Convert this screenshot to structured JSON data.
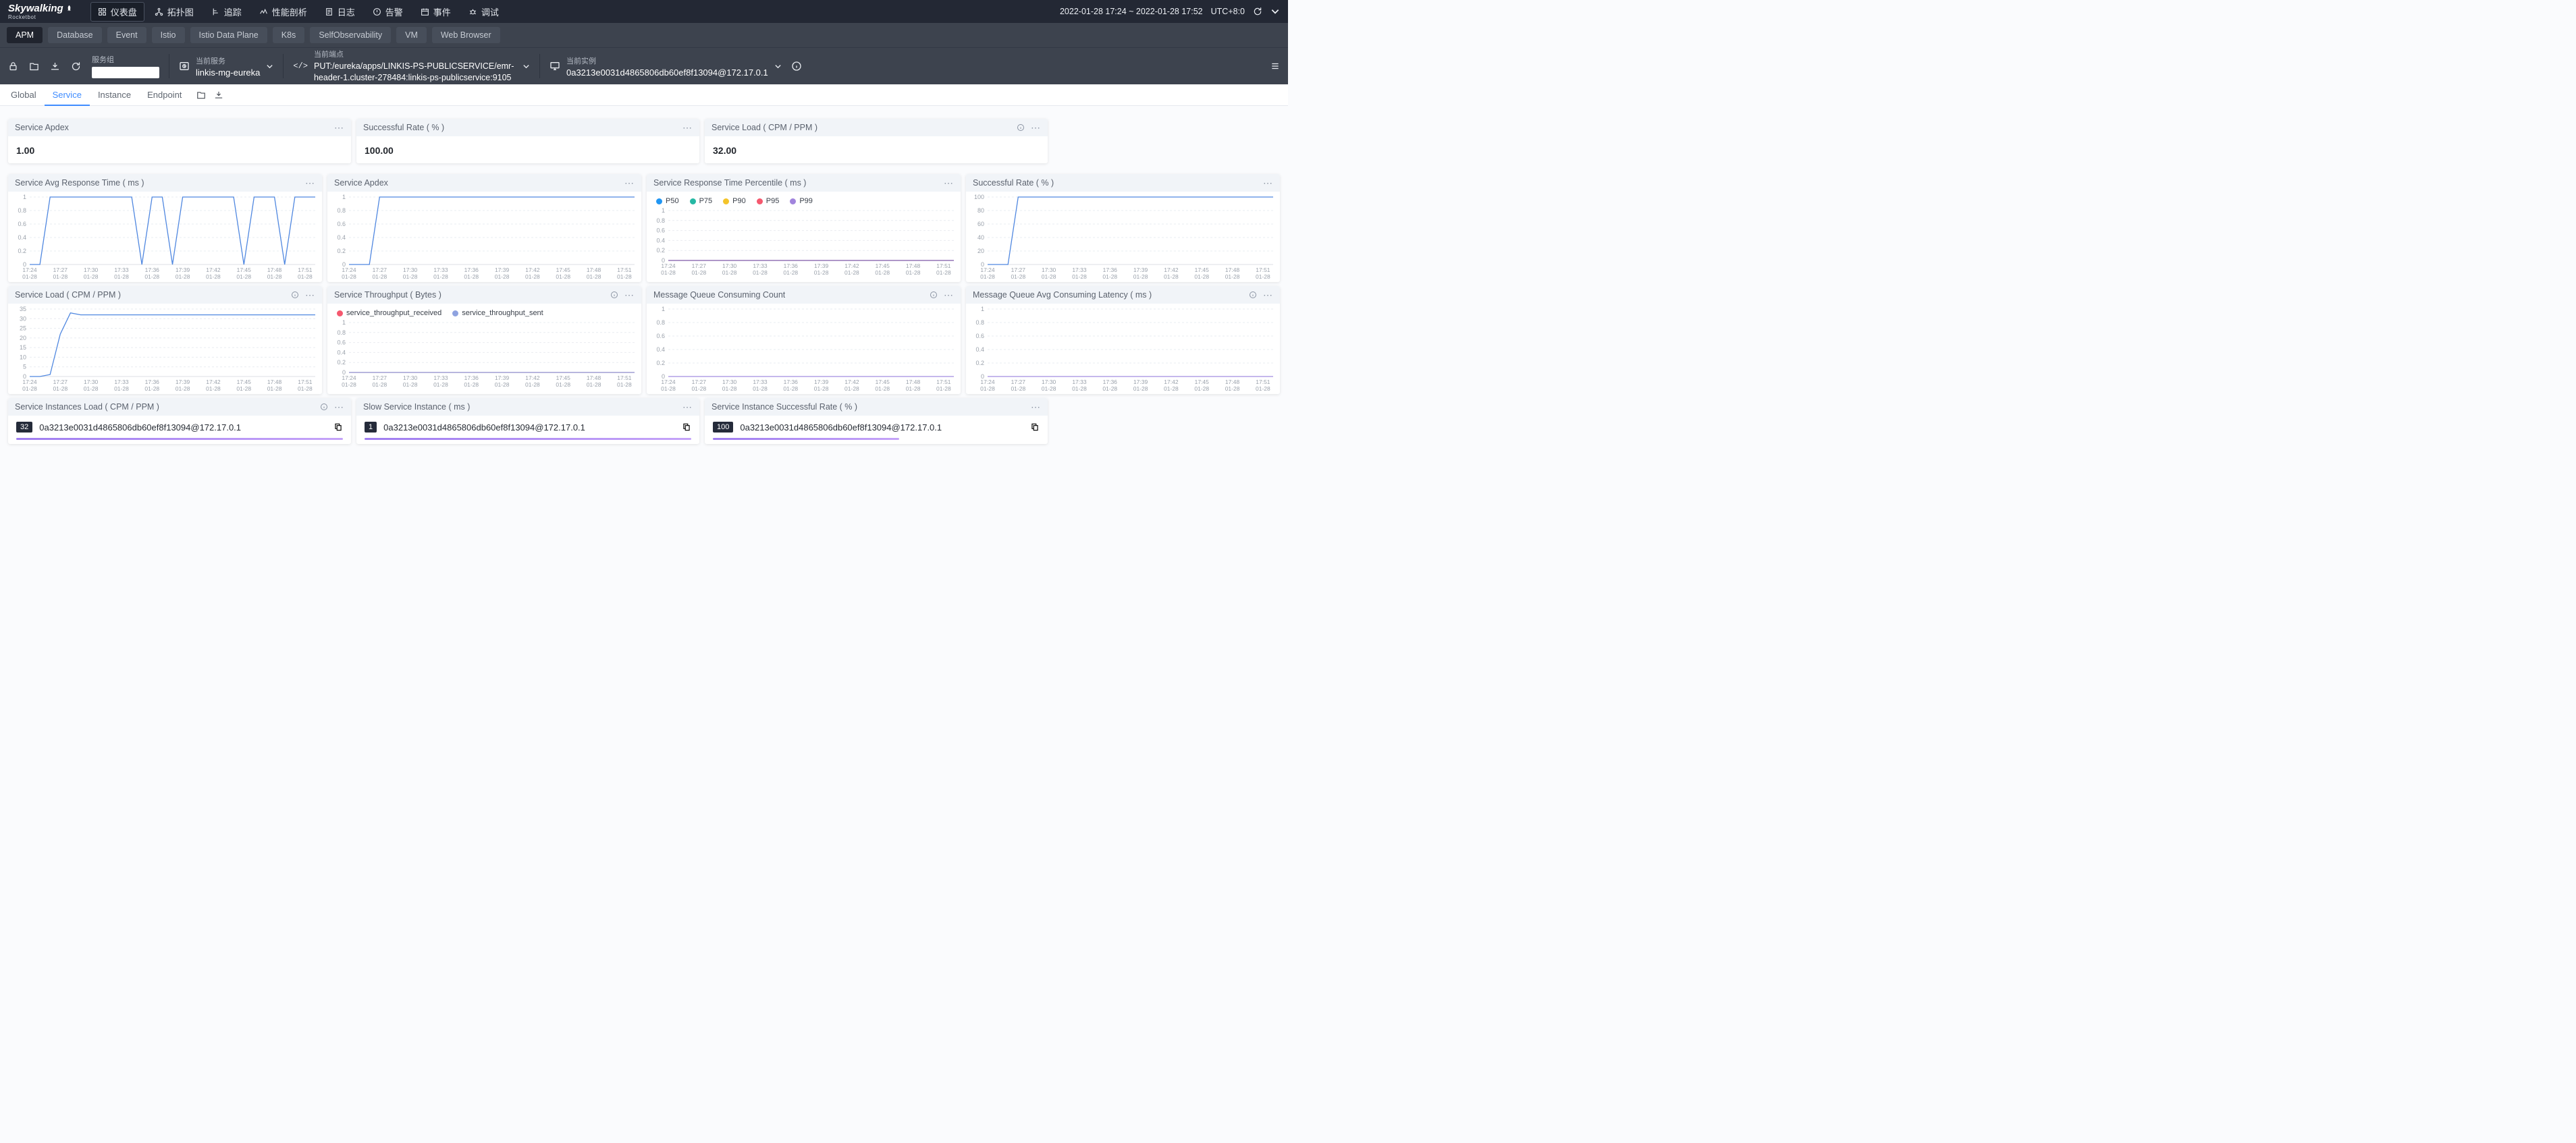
{
  "icons": {
    "more": "⋯",
    "code": "</>"
  },
  "topbar": {
    "logo_title": "Skywalking",
    "logo_subtitle": "Rocketbot",
    "nav": [
      {
        "label": "仪表盘"
      },
      {
        "label": "拓扑图"
      },
      {
        "label": "追踪"
      },
      {
        "label": "性能剖析"
      },
      {
        "label": "日志"
      },
      {
        "label": "告警"
      },
      {
        "label": "事件"
      },
      {
        "label": "调试"
      }
    ],
    "time_range": "2022-01-28 17:24 ~ 2022-01-28 17:52",
    "timezone": "UTC+8:0"
  },
  "dashboard_tabs": {
    "items": [
      {
        "label": "APM",
        "active": true
      },
      {
        "label": "Database"
      },
      {
        "label": "Event"
      },
      {
        "label": "Istio"
      },
      {
        "label": "Istio Data Plane"
      },
      {
        "label": "K8s"
      },
      {
        "label": "SelfObservability"
      },
      {
        "label": "VM"
      },
      {
        "label": "Web Browser"
      }
    ]
  },
  "toolbar": {
    "service_group": {
      "label": "服务组",
      "value": ""
    },
    "current_service": {
      "label": "当前服务",
      "value": "linkis-mg-eureka"
    },
    "current_endpoint": {
      "label": "当前端点",
      "value": "PUT:/eureka/apps/LINKIS-PS-PUBLICSERVICE/emr-header-1.cluster-278484:linkis-ps-publicservice:9105"
    },
    "current_instance": {
      "label": "当前实例",
      "value": "0a3213e0031d4865806db60ef8f13094@172.17.0.1"
    }
  },
  "view_tabs": {
    "items": [
      {
        "label": "Global"
      },
      {
        "label": "Service",
        "active": true
      },
      {
        "label": "Instance"
      },
      {
        "label": "Endpoint"
      }
    ]
  },
  "stat_cards": [
    {
      "title": "Service Apdex",
      "value": "1.00"
    },
    {
      "title": "Successful Rate ( % )",
      "value": "100.00"
    },
    {
      "title": "Service Load ( CPM / PPM )",
      "value": "32.00",
      "has_info": true
    }
  ],
  "chart_data": [
    {
      "type": "line",
      "title": "Service Avg Response Time ( ms )",
      "yticks": [
        0,
        0.2,
        0.4,
        0.6,
        0.8,
        1
      ],
      "x_start": "17:24",
      "x_end": "17:52",
      "x_date": "01-28",
      "x_labels": [
        "17:24",
        "17:27",
        "17:30",
        "17:33",
        "17:36",
        "17:39",
        "17:42",
        "17:45",
        "17:48",
        "17:51"
      ],
      "series": [
        {
          "name": "avg_response_time",
          "color": "#4f87e0",
          "values": [
            0,
            0,
            1,
            1,
            1,
            1,
            1,
            1,
            1,
            1,
            1,
            0,
            1,
            1,
            0,
            1,
            1,
            1,
            1,
            1,
            1,
            0,
            1,
            1,
            1,
            0,
            1,
            1,
            1
          ]
        }
      ]
    },
    {
      "type": "line",
      "title": "Service Apdex",
      "yticks": [
        0,
        0.2,
        0.4,
        0.6,
        0.8,
        1
      ],
      "x_start": "17:24",
      "x_end": "17:52",
      "x_date": "01-28",
      "x_labels": [
        "17:24",
        "17:27",
        "17:30",
        "17:33",
        "17:36",
        "17:39",
        "17:42",
        "17:45",
        "17:48",
        "17:51"
      ],
      "series": [
        {
          "name": "apdex",
          "color": "#4f87e0",
          "values": [
            0,
            0,
            0,
            1,
            1,
            1,
            1,
            1,
            1,
            1,
            1,
            1,
            1,
            1,
            1,
            1,
            1,
            1,
            1,
            1,
            1,
            1,
            1,
            1,
            1,
            1,
            1,
            1,
            1
          ]
        }
      ]
    },
    {
      "type": "line",
      "title": "Service Response Time Percentile ( ms )",
      "legend": true,
      "yticks": [
        0,
        0.2,
        0.4,
        0.6,
        0.8,
        1
      ],
      "x_start": "17:24",
      "x_end": "17:52",
      "x_date": "01-28",
      "x_labels": [
        "17:24",
        "17:27",
        "17:30",
        "17:33",
        "17:36",
        "17:39",
        "17:42",
        "17:45",
        "17:48",
        "17:51"
      ],
      "series": [
        {
          "name": "P50",
          "color": "#2196f3",
          "values": [
            0,
            0,
            0,
            0,
            0,
            0,
            0,
            0,
            0,
            0,
            0,
            0,
            0,
            0,
            0,
            0,
            0,
            0,
            0,
            0,
            0,
            0,
            0,
            0,
            0,
            0,
            0,
            0,
            0
          ]
        },
        {
          "name": "P75",
          "color": "#25b8a4",
          "values": [
            0,
            0,
            0,
            0,
            0,
            0,
            0,
            0,
            0,
            0,
            0,
            0,
            0,
            0,
            0,
            0,
            0,
            0,
            0,
            0,
            0,
            0,
            0,
            0,
            0,
            0,
            0,
            0,
            0
          ]
        },
        {
          "name": "P90",
          "color": "#f4c42a",
          "values": [
            0,
            0,
            0,
            0,
            0,
            0,
            0,
            0,
            0,
            0,
            0,
            0,
            0,
            0,
            0,
            0,
            0,
            0,
            0,
            0,
            0,
            0,
            0,
            0,
            0,
            0,
            0,
            0,
            0
          ]
        },
        {
          "name": "P95",
          "color": "#f5586e",
          "values": [
            0,
            0,
            0,
            0,
            0,
            0,
            0,
            0,
            0,
            0,
            0,
            0,
            0,
            0,
            0,
            0,
            0,
            0,
            0,
            0,
            0,
            0,
            0,
            0,
            0,
            0,
            0,
            0,
            0
          ]
        },
        {
          "name": "P99",
          "color": "#a184dd",
          "values": [
            0,
            0,
            0,
            0,
            0,
            0,
            0,
            0,
            0,
            0,
            0,
            0,
            0,
            0,
            0,
            0,
            0,
            0,
            0,
            0,
            0,
            0,
            0,
            0,
            0,
            0,
            0,
            0,
            0
          ]
        }
      ]
    },
    {
      "type": "line",
      "title": "Successful Rate ( % )",
      "yticks": [
        0,
        20,
        40,
        60,
        80,
        100
      ],
      "x_start": "17:24",
      "x_end": "17:52",
      "x_date": "01-28",
      "x_labels": [
        "17:24",
        "17:27",
        "17:30",
        "17:33",
        "17:36",
        "17:39",
        "17:42",
        "17:45",
        "17:48",
        "17:51"
      ],
      "series": [
        {
          "name": "successful_rate",
          "color": "#4f87e0",
          "values": [
            0,
            0,
            0,
            100,
            100,
            100,
            100,
            100,
            100,
            100,
            100,
            100,
            100,
            100,
            100,
            100,
            100,
            100,
            100,
            100,
            100,
            100,
            100,
            100,
            100,
            100,
            100,
            100,
            100
          ]
        }
      ]
    },
    {
      "type": "line",
      "title": "Service Load ( CPM / PPM )",
      "has_info": true,
      "yticks": [
        0,
        5,
        10,
        15,
        20,
        25,
        30,
        35
      ],
      "x_start": "17:24",
      "x_end": "17:52",
      "x_date": "01-28",
      "x_labels": [
        "17:24",
        "17:27",
        "17:30",
        "17:33",
        "17:36",
        "17:39",
        "17:42",
        "17:45",
        "17:48",
        "17:51"
      ],
      "series": [
        {
          "name": "service_load",
          "color": "#4f87e0",
          "values": [
            0,
            0,
            1,
            22,
            33,
            32,
            32,
            32,
            32,
            32,
            32,
            32,
            32,
            32,
            32,
            32,
            32,
            32,
            32,
            32,
            32,
            32,
            32,
            32,
            32,
            32,
            32,
            32,
            32
          ]
        }
      ]
    },
    {
      "type": "line",
      "title": "Service Throughput ( Bytes )",
      "has_info": true,
      "legend": true,
      "yticks": [
        0,
        0.2,
        0.4,
        0.6,
        0.8,
        1
      ],
      "x_start": "17:24",
      "x_end": "17:52",
      "x_date": "01-28",
      "x_labels": [
        "17:24",
        "17:27",
        "17:30",
        "17:33",
        "17:36",
        "17:39",
        "17:42",
        "17:45",
        "17:48",
        "17:51"
      ],
      "series": [
        {
          "name": "service_throughput_received",
          "color": "#f5586e",
          "values": [
            0,
            0,
            0,
            0,
            0,
            0,
            0,
            0,
            0,
            0,
            0,
            0,
            0,
            0,
            0,
            0,
            0,
            0,
            0,
            0,
            0,
            0,
            0,
            0,
            0,
            0,
            0,
            0,
            0
          ]
        },
        {
          "name": "service_throughput_sent",
          "color": "#8fa3e0",
          "values": [
            0,
            0,
            0,
            0,
            0,
            0,
            0,
            0,
            0,
            0,
            0,
            0,
            0,
            0,
            0,
            0,
            0,
            0,
            0,
            0,
            0,
            0,
            0,
            0,
            0,
            0,
            0,
            0,
            0
          ]
        }
      ]
    },
    {
      "type": "line",
      "title": "Message Queue Consuming Count",
      "has_info": true,
      "yticks": [
        0,
        0.2,
        0.4,
        0.6,
        0.8,
        1
      ],
      "x_start": "17:24",
      "x_end": "17:52",
      "x_date": "01-28",
      "x_labels": [
        "17:24",
        "17:27",
        "17:30",
        "17:33",
        "17:36",
        "17:39",
        "17:42",
        "17:45",
        "17:48",
        "17:51"
      ],
      "series": [
        {
          "name": "consuming_count",
          "color": "#a28ee0",
          "values": [
            0,
            0,
            0,
            0,
            0,
            0,
            0,
            0,
            0,
            0,
            0,
            0,
            0,
            0,
            0,
            0,
            0,
            0,
            0,
            0,
            0,
            0,
            0,
            0,
            0,
            0,
            0,
            0,
            0
          ]
        }
      ]
    },
    {
      "type": "line",
      "title": "Message Queue Avg Consuming Latency ( ms )",
      "has_info": true,
      "yticks": [
        0,
        0.2,
        0.4,
        0.6,
        0.8,
        1
      ],
      "x_start": "17:24",
      "x_end": "17:52",
      "x_date": "01-28",
      "x_labels": [
        "17:24",
        "17:27",
        "17:30",
        "17:33",
        "17:36",
        "17:39",
        "17:42",
        "17:45",
        "17:48",
        "17:51"
      ],
      "series": [
        {
          "name": "consuming_latency",
          "color": "#a28ee0",
          "values": [
            0,
            0,
            0,
            0,
            0,
            0,
            0,
            0,
            0,
            0,
            0,
            0,
            0,
            0,
            0,
            0,
            0,
            0,
            0,
            0,
            0,
            0,
            0,
            0,
            0,
            0,
            0,
            0,
            0
          ]
        }
      ]
    }
  ],
  "instance_cards": [
    {
      "title": "Service Instances Load ( CPM / PPM )",
      "has_info": true,
      "row": {
        "badge": "32",
        "text": "0a3213e0031d4865806db60ef8f13094@172.17.0.1"
      },
      "bar_pct": 100
    },
    {
      "title": "Slow Service Instance ( ms )",
      "row": {
        "badge": "1",
        "text": "0a3213e0031d4865806db60ef8f13094@172.17.0.1"
      },
      "bar_pct": 100
    },
    {
      "title": "Service Instance Successful Rate ( % )",
      "row": {
        "badge": "100",
        "text": "0a3213e0031d4865806db60ef8f13094@172.17.0.1"
      },
      "bar_pct": 57
    }
  ]
}
